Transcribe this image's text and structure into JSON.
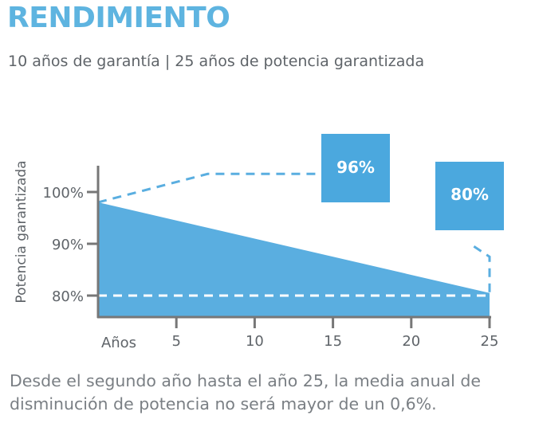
{
  "heading": "RENDIMIENTO",
  "subheading": "10 años de garantía | 25 años de potencia garantizada",
  "footnote": {
    "line1": "Desde el segundo año hasta el año 25, la media anual de",
    "line2": "disminución de potencia no será mayor de un 0,6%."
  },
  "colors": {
    "accent": "#5eb4e0",
    "area": "#5aaee0",
    "box": "#4ba8de",
    "dashed": "#5aaee0",
    "axis": "#777777",
    "text": "#5f6469"
  },
  "chart_data": {
    "type": "area",
    "ylabel": "Potencia garantizada",
    "xlabel": "Años",
    "xlim": [
      0,
      25
    ],
    "ylim": [
      77,
      100
    ],
    "x_ticks": [
      5,
      10,
      15,
      20,
      25
    ],
    "x_tick_labels": [
      "5",
      "10",
      "15",
      "20",
      "25"
    ],
    "y_ticks": [
      80,
      90,
      100
    ],
    "y_tick_labels": [
      "80%",
      "90%",
      "100%"
    ],
    "area": {
      "x": [
        0,
        25
      ],
      "y": [
        98,
        80.5
      ]
    },
    "guarantee_line": {
      "x": [
        0,
        7,
        15
      ],
      "y": [
        98,
        103.5,
        103.5
      ]
    },
    "floor_line": {
      "x": [
        0,
        25
      ],
      "y": [
        80,
        80
      ]
    },
    "end_line": {
      "x": [
        24,
        25,
        25
      ],
      "y": [
        89.5,
        87.5,
        80
      ]
    },
    "annotations": [
      {
        "label": "96%"
      },
      {
        "label": "80%"
      }
    ],
    "grid": false,
    "legend": "none"
  }
}
